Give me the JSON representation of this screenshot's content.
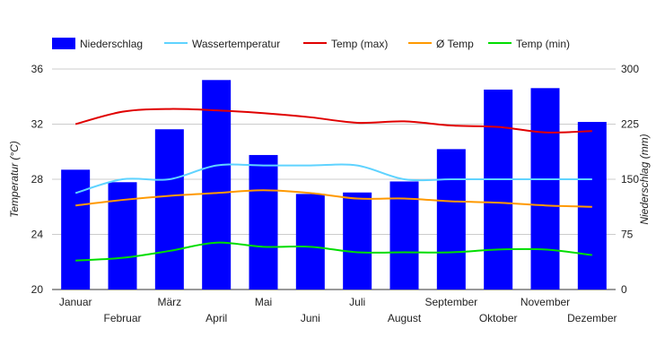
{
  "chart_data": {
    "type": "bar+line",
    "categories": [
      "Januar",
      "Februar",
      "März",
      "April",
      "Mai",
      "Juni",
      "Juli",
      "August",
      "September",
      "Oktober",
      "November",
      "Dezember"
    ],
    "bars": {
      "name": "Niederschlag",
      "color": "#0000ff",
      "axis": "right",
      "values": [
        163,
        146,
        218,
        285,
        183,
        130,
        132,
        147,
        191,
        272,
        274,
        228
      ]
    },
    "lines": [
      {
        "name": "Wassertemperatur",
        "color": "#5fd3ff",
        "axis": "left",
        "values": [
          27.0,
          28.0,
          28.0,
          29.0,
          29.0,
          29.0,
          29.0,
          28.0,
          28.0,
          28.0,
          28.0,
          28.0
        ]
      },
      {
        "name": "Temp (max)",
        "color": "#e00000",
        "axis": "left",
        "values": [
          32.0,
          32.9,
          33.1,
          33.0,
          32.8,
          32.5,
          32.1,
          32.2,
          31.9,
          31.8,
          31.4,
          31.5
        ]
      },
      {
        "name": "Ø Temp",
        "color": "#ff9900",
        "axis": "left",
        "values": [
          26.1,
          26.5,
          26.8,
          27.0,
          27.2,
          27.0,
          26.6,
          26.6,
          26.4,
          26.3,
          26.1,
          26.0
        ]
      },
      {
        "name": "Temp (min)",
        "color": "#00dd00",
        "axis": "left",
        "values": [
          22.1,
          22.3,
          22.8,
          23.4,
          23.1,
          23.1,
          22.7,
          22.7,
          22.7,
          22.9,
          22.9,
          22.5
        ]
      }
    ],
    "y_left": {
      "label": "Temperatur (°C)",
      "ticks": [
        "20",
        "24",
        "28",
        "32",
        "36"
      ],
      "range": [
        20,
        36
      ]
    },
    "y_right": {
      "label": "Niederschlag (mm)",
      "ticks": [
        "0",
        "75",
        "150",
        "225",
        "300"
      ],
      "range": [
        0,
        300
      ]
    },
    "legend": [
      "Niederschlag",
      "Wassertemperatur",
      "Temp (max)",
      "Ø Temp",
      "Temp (min)"
    ],
    "legend_position": "top-left",
    "grid": "horizontal"
  }
}
